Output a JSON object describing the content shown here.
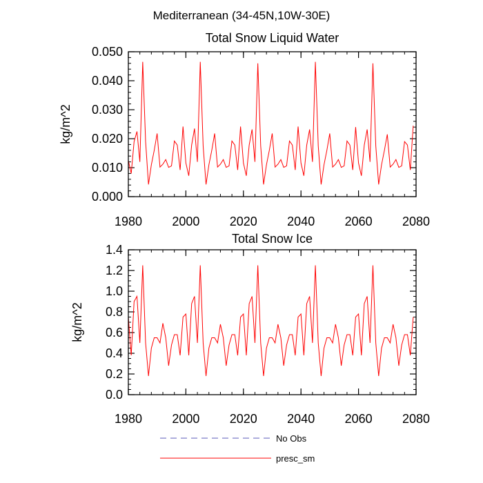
{
  "suptitle": "Mediterranean (34-45N,10W-30E)",
  "legend": [
    {
      "label": "No Obs",
      "color": "#5a5ab8",
      "dash": true
    },
    {
      "label": "presc_sm",
      "color": "#ff0000",
      "dash": false
    }
  ],
  "chart_data": [
    {
      "type": "line",
      "title": "Total Snow Liquid Water",
      "xlabel": "",
      "ylabel": "kg/m^2",
      "xlim": [
        1980,
        2080
      ],
      "ylim": [
        0,
        0.05
      ],
      "xticks": [
        1980,
        2000,
        2020,
        2040,
        2060,
        2080
      ],
      "xticklabels": [
        "1980",
        "2000",
        "2020",
        "2040",
        "2060",
        "2080"
      ],
      "yticks": [
        0,
        0.01,
        0.02,
        0.03,
        0.04,
        0.05
      ],
      "yticklabels": [
        "0.000",
        "0.010",
        "0.020",
        "0.030",
        "0.040",
        "0.050"
      ],
      "yminor": 0.002,
      "xminor": 4,
      "series": [
        {
          "name": "presc_sm",
          "color": "#ff0000",
          "x": [
            1980,
            1981,
            1982,
            1983,
            1984,
            1985,
            1986,
            1987,
            1988,
            1989,
            1990,
            1991,
            1992,
            1993,
            1994,
            1995,
            1996,
            1997,
            1998,
            1999,
            2000,
            2001,
            2002,
            2003,
            2004,
            2005,
            2006,
            2007,
            2008,
            2009,
            2010,
            2011,
            2012,
            2013,
            2014,
            2015,
            2016,
            2017,
            2018,
            2019,
            2020,
            2021,
            2022,
            2023,
            2024,
            2025,
            2026,
            2027,
            2028,
            2029,
            2030,
            2031,
            2032,
            2033,
            2034,
            2035,
            2036,
            2037,
            2038,
            2039,
            2040,
            2041,
            2042,
            2043,
            2044,
            2045,
            2046,
            2047,
            2048,
            2049,
            2050,
            2051,
            2052,
            2053,
            2054,
            2055,
            2056,
            2057,
            2058,
            2059,
            2060,
            2061,
            2062,
            2063,
            2064,
            2065,
            2066,
            2067,
            2068,
            2069,
            2070,
            2071,
            2072,
            2073,
            2074,
            2075,
            2076,
            2077,
            2078,
            2079
          ],
          "values": [
            0.0125,
            0.008,
            0.019,
            0.0225,
            0.012,
            0.0465,
            0.019,
            0.0042,
            0.011,
            0.016,
            0.0218,
            0.0102,
            0.0112,
            0.0128,
            0.0101,
            0.0106,
            0.0192,
            0.0178,
            0.0092,
            0.0242,
            0.0116,
            0.0072,
            0.0178,
            0.0235,
            0.012,
            0.0465,
            0.0175,
            0.0042,
            0.011,
            0.016,
            0.0218,
            0.0102,
            0.0112,
            0.0128,
            0.0101,
            0.0106,
            0.0192,
            0.0178,
            0.0092,
            0.0242,
            0.0116,
            0.0072,
            0.0178,
            0.0232,
            0.012,
            0.046,
            0.0175,
            0.0042,
            0.011,
            0.016,
            0.0218,
            0.0102,
            0.0112,
            0.0128,
            0.0101,
            0.0106,
            0.0192,
            0.0178,
            0.0092,
            0.0242,
            0.0116,
            0.0072,
            0.0178,
            0.0232,
            0.012,
            0.0465,
            0.0175,
            0.0042,
            0.011,
            0.016,
            0.0218,
            0.0102,
            0.0112,
            0.0128,
            0.0101,
            0.0106,
            0.0192,
            0.0178,
            0.0092,
            0.024,
            0.0116,
            0.0072,
            0.0178,
            0.0232,
            0.012,
            0.046,
            0.0175,
            0.0042,
            0.011,
            0.016,
            0.0215,
            0.0102,
            0.0112,
            0.0128,
            0.0101,
            0.0106,
            0.019,
            0.0178,
            0.0092,
            0.0245
          ]
        }
      ]
    },
    {
      "type": "line",
      "title": "Total Snow Ice",
      "xlabel": "",
      "ylabel": "kg/m^2",
      "xlim": [
        1980,
        2080
      ],
      "ylim": [
        0,
        1.4
      ],
      "xticks": [
        1980,
        2000,
        2020,
        2040,
        2060,
        2080
      ],
      "xticklabels": [
        "1980",
        "2000",
        "2020",
        "2040",
        "2060",
        "2080"
      ],
      "yticks": [
        0,
        0.2,
        0.4,
        0.6,
        0.8,
        1.0,
        1.2,
        1.4
      ],
      "yticklabels": [
        "0.0",
        "0.2",
        "0.4",
        "0.6",
        "0.8",
        "1.0",
        "1.2",
        "1.4"
      ],
      "yminor": 0.05,
      "xminor": 4,
      "series": [
        {
          "name": "presc_sm",
          "color": "#ff0000",
          "x": [
            1980,
            1981,
            1982,
            1983,
            1984,
            1985,
            1986,
            1987,
            1988,
            1989,
            1990,
            1991,
            1992,
            1993,
            1994,
            1995,
            1996,
            1997,
            1998,
            1999,
            2000,
            2001,
            2002,
            2003,
            2004,
            2005,
            2006,
            2007,
            2008,
            2009,
            2010,
            2011,
            2012,
            2013,
            2014,
            2015,
            2016,
            2017,
            2018,
            2019,
            2020,
            2021,
            2022,
            2023,
            2024,
            2025,
            2026,
            2027,
            2028,
            2029,
            2030,
            2031,
            2032,
            2033,
            2034,
            2035,
            2036,
            2037,
            2038,
            2039,
            2040,
            2041,
            2042,
            2043,
            2044,
            2045,
            2046,
            2047,
            2048,
            2049,
            2050,
            2051,
            2052,
            2053,
            2054,
            2055,
            2056,
            2057,
            2058,
            2059,
            2060,
            2061,
            2062,
            2063,
            2064,
            2065,
            2066,
            2067,
            2068,
            2069,
            2070,
            2071,
            2072,
            2073,
            2074,
            2075,
            2076,
            2077,
            2078,
            2079
          ],
          "values": [
            0.75,
            0.38,
            0.9,
            0.95,
            0.5,
            1.25,
            0.5,
            0.18,
            0.45,
            0.55,
            0.55,
            0.5,
            0.69,
            0.55,
            0.28,
            0.48,
            0.58,
            0.58,
            0.38,
            0.75,
            0.78,
            0.38,
            0.88,
            0.95,
            0.5,
            1.25,
            0.5,
            0.18,
            0.45,
            0.55,
            0.55,
            0.5,
            0.68,
            0.55,
            0.28,
            0.48,
            0.58,
            0.58,
            0.38,
            0.75,
            0.78,
            0.38,
            0.88,
            0.95,
            0.5,
            1.25,
            0.5,
            0.18,
            0.45,
            0.55,
            0.55,
            0.5,
            0.68,
            0.55,
            0.28,
            0.48,
            0.58,
            0.58,
            0.38,
            0.75,
            0.78,
            0.38,
            0.88,
            0.95,
            0.5,
            1.25,
            0.5,
            0.18,
            0.45,
            0.55,
            0.55,
            0.5,
            0.68,
            0.55,
            0.28,
            0.48,
            0.58,
            0.58,
            0.38,
            0.75,
            0.78,
            0.38,
            0.88,
            0.95,
            0.5,
            1.25,
            0.5,
            0.18,
            0.45,
            0.55,
            0.55,
            0.5,
            0.68,
            0.55,
            0.28,
            0.48,
            0.58,
            0.58,
            0.38,
            0.75
          ]
        }
      ]
    }
  ]
}
